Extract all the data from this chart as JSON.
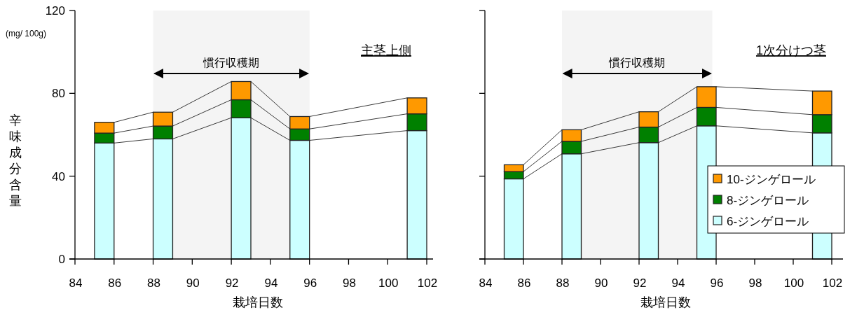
{
  "chart_data": [
    {
      "type": "bar",
      "stacked": true,
      "title": "主茎上側",
      "xlabel": "栽培日数",
      "ylabel": "辛味成分含量",
      "annotations": [
        "(mg/ 100g)"
      ],
      "x": [
        85.5,
        88.5,
        92.5,
        95.5,
        101.5
      ],
      "series": [
        {
          "color": "#ccffff",
          "values": [
            56,
            58,
            68.2,
            57.3,
            62
          ]
        },
        {
          "color": "#008000",
          "values": [
            4.8,
            6.2,
            8.7,
            5.5,
            8.1
          ]
        },
        {
          "color": "#ff9900",
          "values": [
            5.2,
            6.7,
            8.8,
            6.0,
            7.7
          ]
        }
      ],
      "xlim": [
        84,
        102
      ],
      "ylim": [
        0,
        120
      ],
      "xticks": [
        84,
        86,
        88,
        90,
        92,
        94,
        96,
        98,
        100,
        102
      ],
      "yticks": [
        0,
        40,
        80,
        120
      ],
      "bands": [
        {
          "axis": "x",
          "from": 88,
          "to": 96,
          "label": "慣行収穫期"
        }
      ],
      "legend": false
    },
    {
      "type": "bar",
      "stacked": true,
      "title": "1次分けつ茎",
      "xlabel": "栽培日数",
      "x": [
        85.5,
        88.5,
        92.5,
        95.5,
        101.5
      ],
      "series": [
        {
          "name": "6-ジンゲロール",
          "color": "#ccffff",
          "values": [
            38.7,
            50.8,
            56.2,
            64.3,
            60.9
          ]
        },
        {
          "name": "8-ジンゲロール",
          "color": "#008000",
          "values": [
            3.5,
            6.0,
            7.5,
            8.9,
            8.8
          ]
        },
        {
          "name": "10-ジンゲロール",
          "color": "#ff9900",
          "values": [
            3.3,
            5.6,
            7.4,
            10.0,
            11.4
          ]
        }
      ],
      "xlim": [
        84,
        102
      ],
      "ylim": [
        0,
        120
      ],
      "xticks": [
        84,
        86,
        88,
        90,
        92,
        94,
        96,
        98,
        100,
        102
      ],
      "yticks": [
        0,
        40,
        80,
        120
      ],
      "tick_labels": "x",
      "bands": [
        {
          "axis": "x",
          "from": 88,
          "to": 95.8,
          "label": "慣行収穫期"
        }
      ],
      "legend": "bottom right"
    }
  ]
}
